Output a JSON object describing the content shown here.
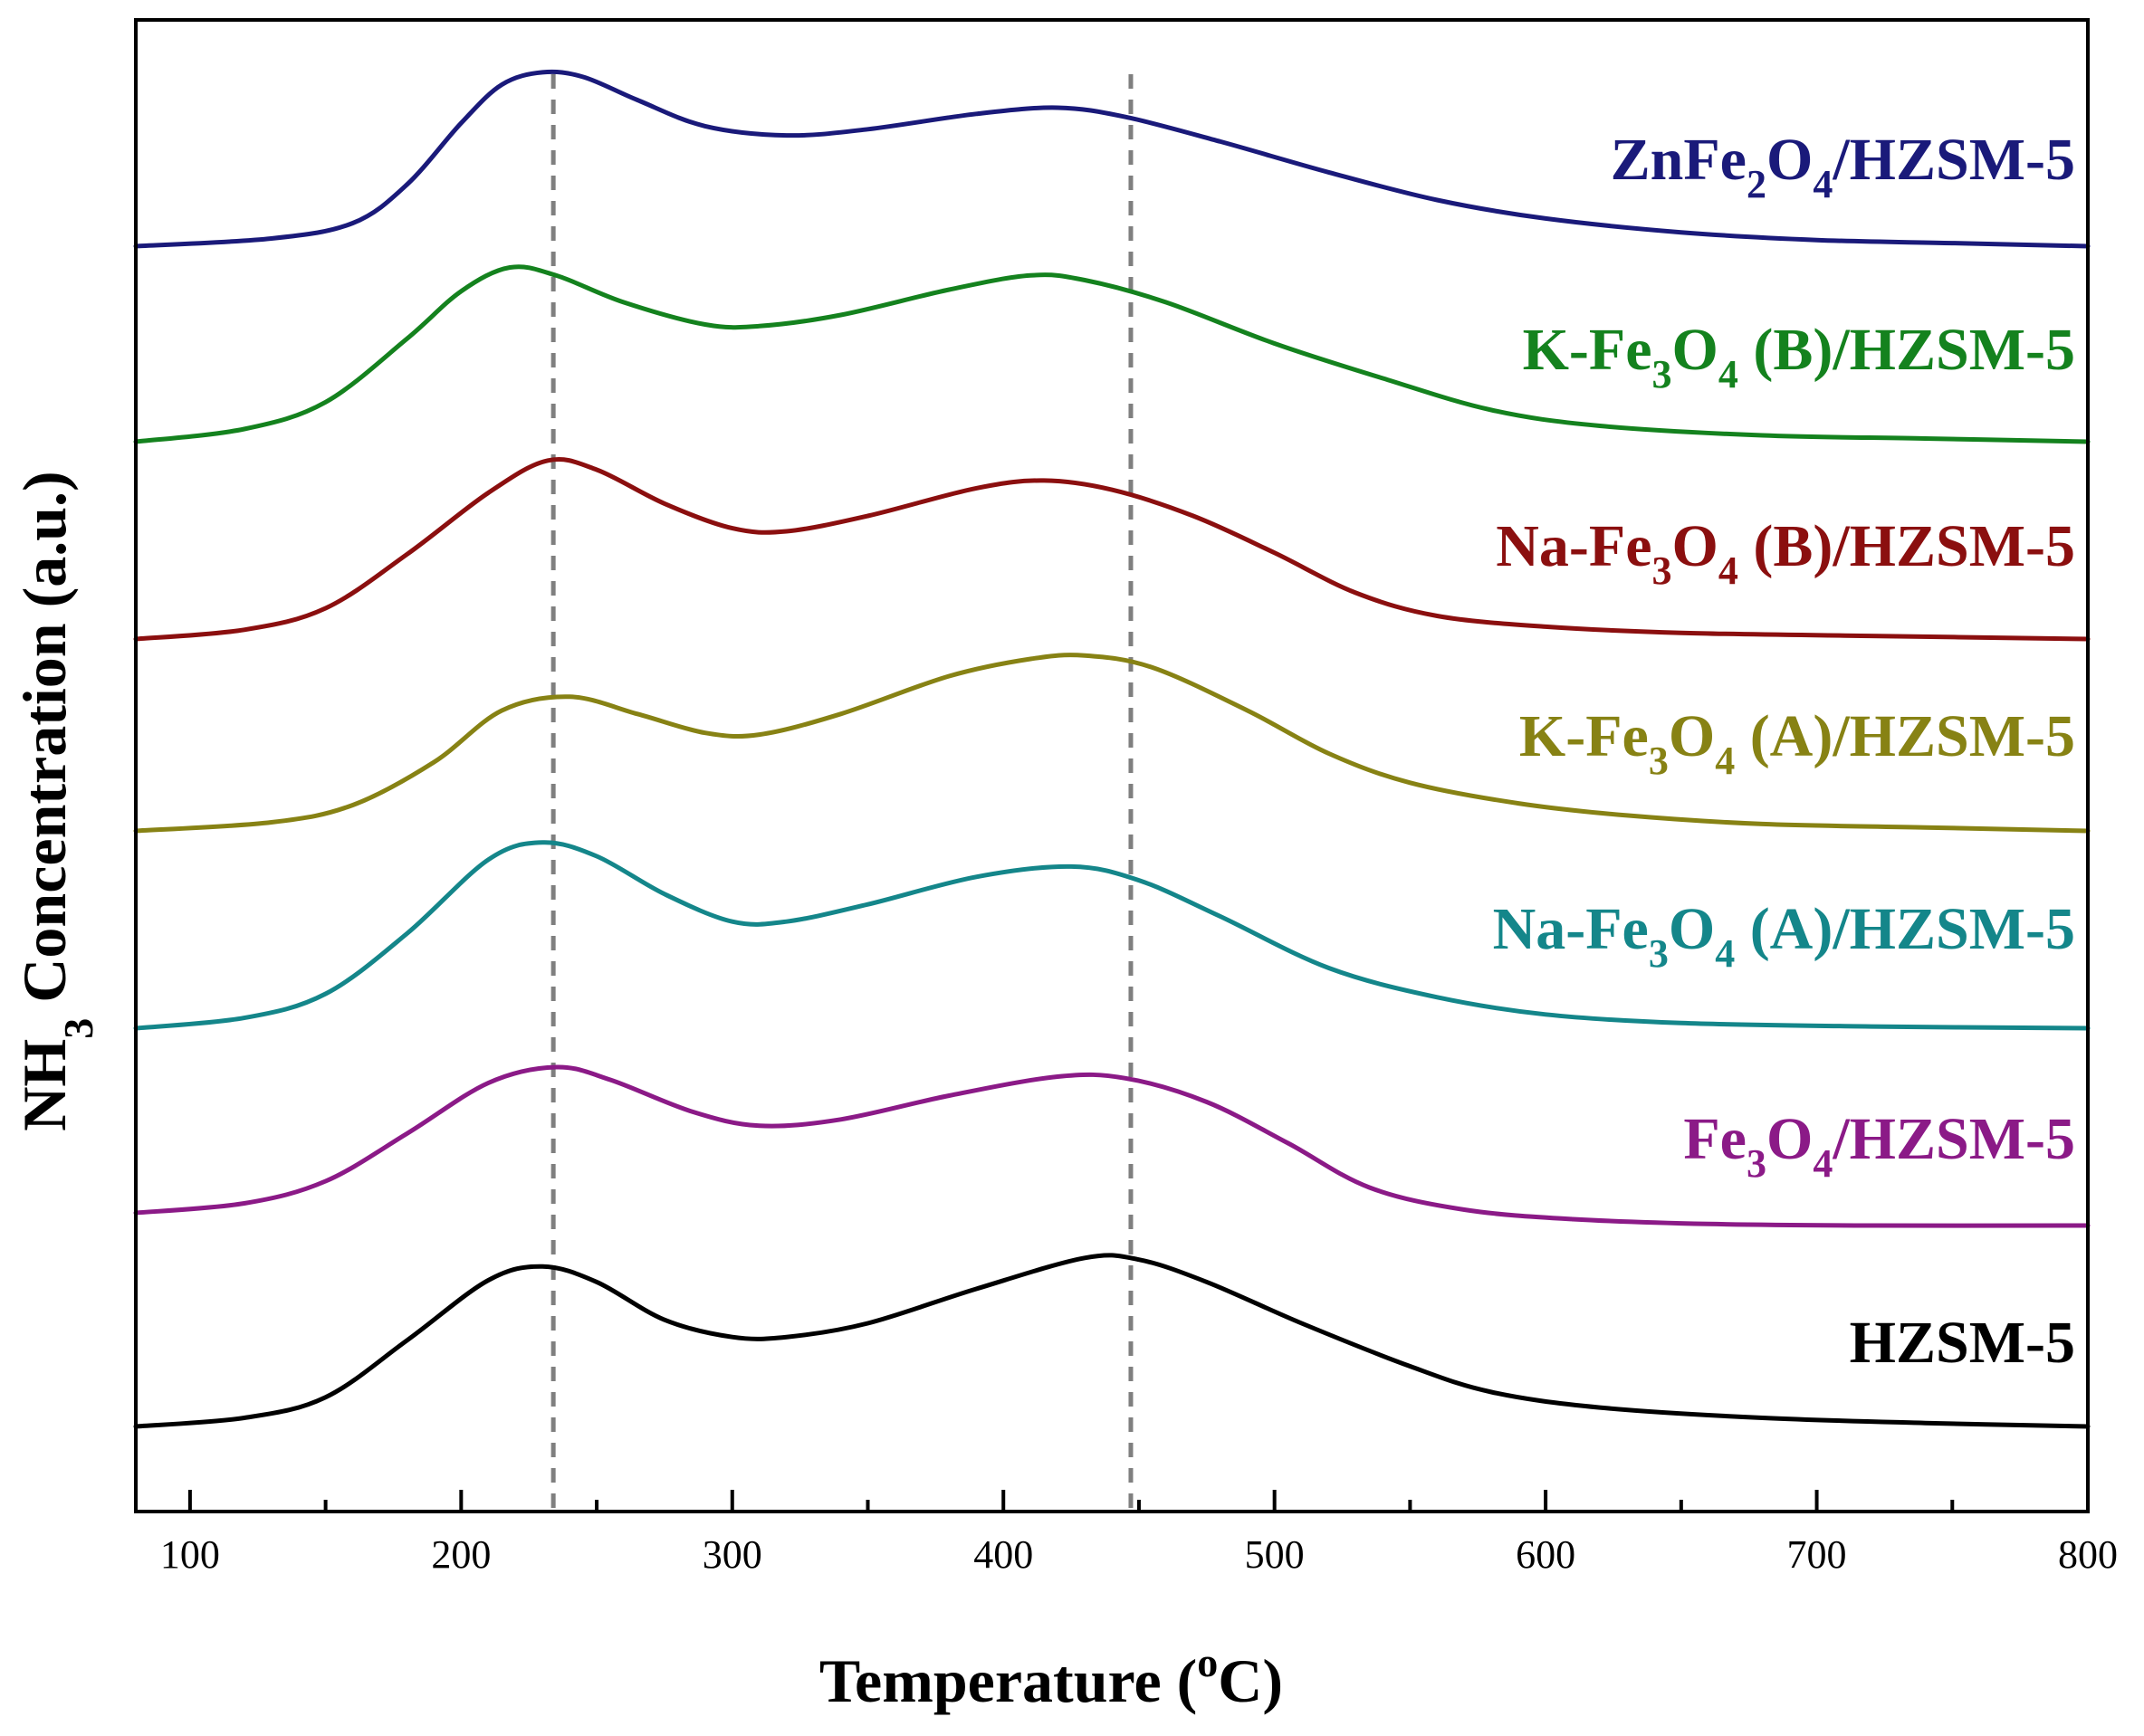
{
  "chart_data": {
    "type": "line",
    "title": "",
    "xlabel": "Temperature (oC)",
    "xlabel_parts": {
      "main": "Temperature (",
      "sup": "o",
      "end": "C)"
    },
    "ylabel": "NH3 Concentration (a.u.)",
    "ylabel_parts": {
      "main": "NH",
      "sub": "3",
      "end": " Concentration (a.u.)"
    },
    "xlim": [
      80,
      800
    ],
    "xticks": [
      100,
      200,
      300,
      400,
      500,
      600,
      700,
      800
    ],
    "xminor": [
      150,
      250,
      350,
      450,
      550,
      650,
      750
    ],
    "yticks_shown": false,
    "reference_lines": [
      {
        "x": 234,
        "style": "dashed",
        "color": "#7f7f7f"
      },
      {
        "x": 447,
        "style": "dashed",
        "color": "#7f7f7f"
      }
    ],
    "series": [
      {
        "name": "ZnFe2O4/HZSM-5",
        "label_parts": [
          {
            "t": "ZnFe"
          },
          {
            "t": "2",
            "sub": true
          },
          {
            "t": "O"
          },
          {
            "t": "4",
            "sub": true
          },
          {
            "t": "/HZSM-5"
          }
        ],
        "color": "#1a1a7a",
        "points": [
          [
            80,
            0.0
          ],
          [
            130,
            0.05
          ],
          [
            160,
            0.15
          ],
          [
            180,
            0.4
          ],
          [
            200,
            0.8
          ],
          [
            215,
            1.05
          ],
          [
            230,
            1.13
          ],
          [
            245,
            1.1
          ],
          [
            265,
            0.95
          ],
          [
            290,
            0.78
          ],
          [
            320,
            0.72
          ],
          [
            350,
            0.76
          ],
          [
            390,
            0.86
          ],
          [
            420,
            0.9
          ],
          [
            445,
            0.84
          ],
          [
            480,
            0.68
          ],
          [
            520,
            0.48
          ],
          [
            560,
            0.3
          ],
          [
            600,
            0.18
          ],
          [
            650,
            0.09
          ],
          [
            700,
            0.04
          ],
          [
            750,
            0.02
          ],
          [
            800,
            0.0
          ]
        ]
      },
      {
        "name": "K-Fe3O4 (B)/HZSM-5",
        "label_parts": [
          {
            "t": "K-Fe"
          },
          {
            "t": "3",
            "sub": true
          },
          {
            "t": "O"
          },
          {
            "t": "4",
            "sub": true
          },
          {
            "t": " (B)/HZSM-5"
          }
        ],
        "color": "#14821e",
        "points": [
          [
            80,
            0.0
          ],
          [
            120,
            0.08
          ],
          [
            150,
            0.25
          ],
          [
            180,
            0.65
          ],
          [
            200,
            0.95
          ],
          [
            218,
            1.1
          ],
          [
            235,
            1.05
          ],
          [
            260,
            0.88
          ],
          [
            290,
            0.74
          ],
          [
            310,
            0.73
          ],
          [
            340,
            0.8
          ],
          [
            380,
            0.96
          ],
          [
            410,
            1.05
          ],
          [
            430,
            1.02
          ],
          [
            460,
            0.88
          ],
          [
            500,
            0.62
          ],
          [
            540,
            0.4
          ],
          [
            580,
            0.2
          ],
          [
            620,
            0.1
          ],
          [
            680,
            0.04
          ],
          [
            740,
            0.02
          ],
          [
            800,
            0.0
          ]
        ]
      },
      {
        "name": "Na-Fe3O4 (B)/HZSM-5",
        "label_parts": [
          {
            "t": "Na-Fe"
          },
          {
            "t": "3",
            "sub": true
          },
          {
            "t": "O"
          },
          {
            "t": "4",
            "sub": true
          },
          {
            "t": " (B)/HZSM-5"
          }
        ],
        "color": "#8b0f0f",
        "points": [
          [
            80,
            0.0
          ],
          [
            120,
            0.06
          ],
          [
            150,
            0.2
          ],
          [
            180,
            0.55
          ],
          [
            210,
            0.95
          ],
          [
            232,
            1.16
          ],
          [
            250,
            1.1
          ],
          [
            275,
            0.88
          ],
          [
            300,
            0.72
          ],
          [
            320,
            0.7
          ],
          [
            350,
            0.8
          ],
          [
            390,
            0.98
          ],
          [
            415,
            1.03
          ],
          [
            440,
            0.97
          ],
          [
            470,
            0.8
          ],
          [
            500,
            0.56
          ],
          [
            530,
            0.3
          ],
          [
            560,
            0.15
          ],
          [
            600,
            0.08
          ],
          [
            650,
            0.04
          ],
          [
            720,
            0.02
          ],
          [
            800,
            0.0
          ]
        ]
      },
      {
        "name": "K-Fe3O4 (A)/HZSM-5",
        "label_parts": [
          {
            "t": "K-Fe"
          },
          {
            "t": "3",
            "sub": true
          },
          {
            "t": "O"
          },
          {
            "t": "4",
            "sub": true
          },
          {
            "t": " (A)/HZSM-5"
          }
        ],
        "color": "#878214",
        "points": [
          [
            80,
            0.0
          ],
          [
            130,
            0.05
          ],
          [
            160,
            0.15
          ],
          [
            190,
            0.4
          ],
          [
            215,
            0.7
          ],
          [
            240,
            0.78
          ],
          [
            265,
            0.68
          ],
          [
            290,
            0.57
          ],
          [
            310,
            0.56
          ],
          [
            340,
            0.68
          ],
          [
            380,
            0.9
          ],
          [
            410,
            1.0
          ],
          [
            430,
            1.02
          ],
          [
            455,
            0.95
          ],
          [
            490,
            0.7
          ],
          [
            520,
            0.45
          ],
          [
            550,
            0.28
          ],
          [
            590,
            0.16
          ],
          [
            630,
            0.09
          ],
          [
            680,
            0.04
          ],
          [
            740,
            0.02
          ],
          [
            800,
            0.0
          ]
        ]
      },
      {
        "name": "Na-Fe3O4 (A)/HZSM-5",
        "label_parts": [
          {
            "t": "Na-Fe"
          },
          {
            "t": "3",
            "sub": true
          },
          {
            "t": "O"
          },
          {
            "t": "4",
            "sub": true
          },
          {
            "t": " (A)/HZSM-5"
          }
        ],
        "color": "#14868a",
        "points": [
          [
            80,
            0.0
          ],
          [
            120,
            0.06
          ],
          [
            150,
            0.2
          ],
          [
            180,
            0.55
          ],
          [
            210,
            0.98
          ],
          [
            230,
            1.08
          ],
          [
            250,
            1.0
          ],
          [
            275,
            0.78
          ],
          [
            300,
            0.62
          ],
          [
            320,
            0.62
          ],
          [
            350,
            0.72
          ],
          [
            390,
            0.88
          ],
          [
            425,
            0.94
          ],
          [
            450,
            0.86
          ],
          [
            480,
            0.65
          ],
          [
            520,
            0.35
          ],
          [
            560,
            0.18
          ],
          [
            600,
            0.08
          ],
          [
            650,
            0.03
          ],
          [
            720,
            0.01
          ],
          [
            800,
            0.0
          ]
        ]
      },
      {
        "name": "Fe3O4/HZSM-5",
        "label_parts": [
          {
            "t": "Fe"
          },
          {
            "t": "3",
            "sub": true
          },
          {
            "t": "O"
          },
          {
            "t": "4",
            "sub": true
          },
          {
            "t": "/HZSM-5"
          }
        ],
        "color": "#8b1a87",
        "points": [
          [
            80,
            0.08
          ],
          [
            120,
            0.14
          ],
          [
            150,
            0.28
          ],
          [
            180,
            0.58
          ],
          [
            210,
            0.9
          ],
          [
            235,
            1.0
          ],
          [
            255,
            0.92
          ],
          [
            285,
            0.72
          ],
          [
            310,
            0.63
          ],
          [
            340,
            0.67
          ],
          [
            380,
            0.82
          ],
          [
            420,
            0.94
          ],
          [
            445,
            0.93
          ],
          [
            475,
            0.78
          ],
          [
            505,
            0.52
          ],
          [
            535,
            0.24
          ],
          [
            570,
            0.1
          ],
          [
            610,
            0.04
          ],
          [
            660,
            0.01
          ],
          [
            720,
            0.0
          ],
          [
            800,
            0.0
          ]
        ]
      },
      {
        "name": "HZSM-5",
        "label_parts": [
          {
            "t": "HZSM-5"
          }
        ],
        "color": "#000000",
        "points": [
          [
            80,
            0.0
          ],
          [
            120,
            0.05
          ],
          [
            150,
            0.17
          ],
          [
            180,
            0.5
          ],
          [
            210,
            0.85
          ],
          [
            230,
            0.93
          ],
          [
            250,
            0.84
          ],
          [
            275,
            0.62
          ],
          [
            300,
            0.52
          ],
          [
            320,
            0.52
          ],
          [
            350,
            0.6
          ],
          [
            390,
            0.8
          ],
          [
            430,
            0.98
          ],
          [
            450,
            0.97
          ],
          [
            475,
            0.84
          ],
          [
            510,
            0.6
          ],
          [
            550,
            0.35
          ],
          [
            580,
            0.2
          ],
          [
            620,
            0.11
          ],
          [
            680,
            0.05
          ],
          [
            740,
            0.02
          ],
          [
            800,
            0.0
          ]
        ]
      }
    ]
  }
}
